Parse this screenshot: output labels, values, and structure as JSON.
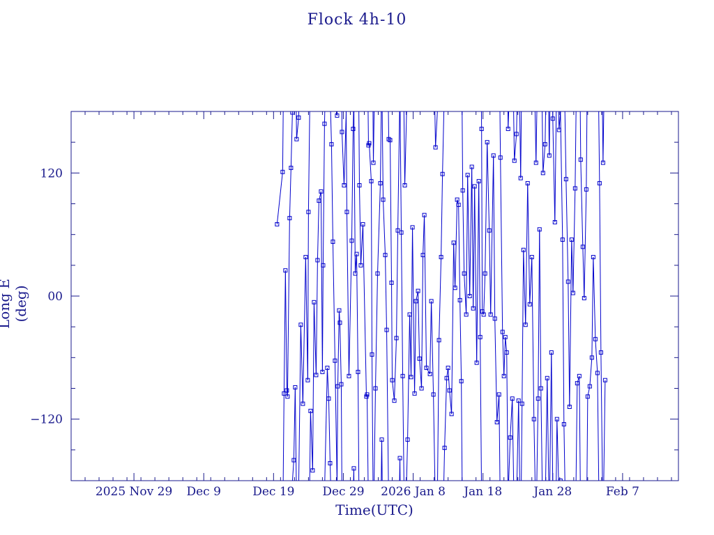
{
  "colors": {
    "axis": "#1a1a8c",
    "series": "#0000cc",
    "background": "#ffffff"
  },
  "chart_data": {
    "type": "line",
    "title": "Flock 4h-10",
    "xlabel": "Time(UTC)",
    "ylabel": "Long E (deg)",
    "x_unit": "days from 2025-11-20",
    "xlim": [
      0,
      87
    ],
    "ylim": [
      -180,
      180
    ],
    "x_ticks": [
      {
        "label": "2025 Nov 29",
        "day": 9
      },
      {
        "label": "Dec  9",
        "day": 19
      },
      {
        "label": "Dec 19",
        "day": 29
      },
      {
        "label": "Dec 29",
        "day": 39
      },
      {
        "label": "2026 Jan  8",
        "day": 49
      },
      {
        "label": "Jan 18",
        "day": 59
      },
      {
        "label": "Jan 28",
        "day": 69
      },
      {
        "label": "Feb  7",
        "day": 79
      }
    ],
    "y_ticks": [
      {
        "label": "−120",
        "value": -120
      },
      {
        "label": "00",
        "value": 0
      },
      {
        "label": "120",
        "value": 120
      }
    ],
    "series": [
      {
        "name": "",
        "wrap": true,
        "values": [
          [
            29.5,
            70
          ],
          [
            30.3,
            121
          ],
          [
            30.5,
            -95
          ],
          [
            30.7,
            25
          ],
          [
            30.9,
            -92
          ],
          [
            31.0,
            -98
          ],
          [
            31.3,
            76
          ],
          [
            31.5,
            125
          ],
          [
            31.7,
            179
          ],
          [
            31.9,
            -160
          ],
          [
            32.1,
            -89
          ],
          [
            32.3,
            153
          ],
          [
            32.6,
            174
          ],
          [
            32.9,
            -28
          ],
          [
            33.2,
            -105
          ],
          [
            33.6,
            38
          ],
          [
            33.9,
            -82
          ],
          [
            34.0,
            82
          ],
          [
            34.3,
            -112
          ],
          [
            34.6,
            -170
          ],
          [
            34.8,
            -6
          ],
          [
            35.1,
            -77
          ],
          [
            35.3,
            35
          ],
          [
            35.5,
            93
          ],
          [
            35.8,
            102
          ],
          [
            36.0,
            -74
          ],
          [
            36.1,
            30
          ],
          [
            36.3,
            168
          ],
          [
            36.7,
            -70
          ],
          [
            36.9,
            -100
          ],
          [
            37.1,
            -163
          ],
          [
            37.3,
            148
          ],
          [
            37.5,
            53
          ],
          [
            37.8,
            -63
          ],
          [
            38.1,
            176
          ],
          [
            38.2,
            -88
          ],
          [
            38.4,
            -14
          ],
          [
            38.5,
            -26
          ],
          [
            38.7,
            -86
          ],
          [
            38.8,
            160
          ],
          [
            39.1,
            108
          ],
          [
            39.4,
            -182
          ],
          [
            39.5,
            82
          ],
          [
            39.8,
            -78
          ],
          [
            40.2,
            54
          ],
          [
            40.4,
            163
          ],
          [
            40.5,
            -168
          ],
          [
            40.7,
            22
          ],
          [
            40.9,
            41
          ],
          [
            41.1,
            -74
          ],
          [
            41.3,
            108
          ],
          [
            41.5,
            30
          ],
          [
            41.8,
            70
          ],
          [
            42.3,
            -98
          ],
          [
            42.4,
            -96
          ],
          [
            42.6,
            147
          ],
          [
            42.7,
            149
          ],
          [
            43.0,
            112
          ],
          [
            43.1,
            -57
          ],
          [
            43.3,
            130
          ],
          [
            43.6,
            -90
          ],
          [
            43.9,
            22
          ],
          [
            44.3,
            110
          ],
          [
            44.5,
            -140
          ],
          [
            44.7,
            94
          ],
          [
            45.0,
            40
          ],
          [
            45.2,
            -33
          ],
          [
            45.5,
            153
          ],
          [
            45.7,
            152
          ],
          [
            45.9,
            13
          ],
          [
            46.0,
            -82
          ],
          [
            46.3,
            -102
          ],
          [
            46.6,
            -41
          ],
          [
            46.8,
            64
          ],
          [
            47.1,
            -158
          ],
          [
            47.3,
            62
          ],
          [
            47.5,
            -78
          ],
          [
            47.8,
            108
          ],
          [
            48.2,
            -140
          ],
          [
            48.5,
            -18
          ],
          [
            48.7,
            -79
          ],
          [
            48.9,
            67
          ],
          [
            49.2,
            -95
          ],
          [
            49.4,
            -5
          ],
          [
            49.7,
            5
          ],
          [
            49.9,
            -61
          ],
          [
            50.2,
            -90
          ],
          [
            50.4,
            40
          ],
          [
            50.6,
            79
          ],
          [
            50.9,
            -70
          ],
          [
            51.4,
            -76
          ],
          [
            51.6,
            -5
          ],
          [
            51.9,
            -96
          ],
          [
            52.2,
            145
          ],
          [
            52.5,
            184
          ],
          [
            52.7,
            -43
          ],
          [
            53.0,
            38
          ],
          [
            53.2,
            119
          ],
          [
            53.5,
            -148
          ],
          [
            53.8,
            -80
          ],
          [
            54.0,
            -70
          ],
          [
            54.2,
            -92
          ],
          [
            54.5,
            -115
          ],
          [
            54.8,
            52
          ],
          [
            55.0,
            8
          ],
          [
            55.3,
            94
          ],
          [
            55.5,
            89
          ],
          [
            55.7,
            -4
          ],
          [
            55.9,
            -83
          ],
          [
            56.1,
            103
          ],
          [
            56.3,
            22
          ],
          [
            56.6,
            -18
          ],
          [
            56.8,
            118
          ],
          [
            57.1,
            0
          ],
          [
            57.4,
            126
          ],
          [
            57.6,
            -12
          ],
          [
            57.8,
            107
          ],
          [
            58.1,
            -65
          ],
          [
            58.4,
            112
          ],
          [
            58.6,
            -40
          ],
          [
            58.8,
            163
          ],
          [
            58.9,
            -15
          ],
          [
            59.1,
            -18
          ],
          [
            59.3,
            22
          ],
          [
            59.6,
            150
          ],
          [
            59.9,
            64
          ],
          [
            60.1,
            -18
          ],
          [
            60.5,
            137
          ],
          [
            60.7,
            -22
          ],
          [
            61.0,
            -123
          ],
          [
            61.3,
            -96
          ],
          [
            61.5,
            135
          ],
          [
            61.8,
            -35
          ],
          [
            62.0,
            -78
          ],
          [
            62.2,
            -40
          ],
          [
            62.4,
            -55
          ],
          [
            62.6,
            163
          ],
          [
            62.9,
            -138
          ],
          [
            63.2,
            -100
          ],
          [
            63.5,
            132
          ],
          [
            63.8,
            158
          ],
          [
            64.1,
            -102
          ],
          [
            64.4,
            115
          ],
          [
            64.6,
            -105
          ],
          [
            64.8,
            45
          ],
          [
            65.1,
            -28
          ],
          [
            65.4,
            110
          ],
          [
            65.7,
            -8
          ],
          [
            66.0,
            38
          ],
          [
            66.3,
            -120
          ],
          [
            66.6,
            130
          ],
          [
            66.9,
            -100
          ],
          [
            67.1,
            65
          ],
          [
            67.3,
            -90
          ],
          [
            67.6,
            120
          ],
          [
            67.9,
            148
          ],
          [
            68.2,
            -80
          ],
          [
            68.5,
            137
          ],
          [
            68.8,
            -55
          ],
          [
            69.0,
            173
          ],
          [
            69.3,
            72
          ],
          [
            69.6,
            -120
          ],
          [
            69.9,
            162
          ],
          [
            70.1,
            -180
          ],
          [
            70.4,
            55
          ],
          [
            70.6,
            -125
          ],
          [
            70.9,
            114
          ],
          [
            71.2,
            14
          ],
          [
            71.4,
            -108
          ],
          [
            71.7,
            55
          ],
          [
            71.9,
            3
          ],
          [
            72.2,
            105
          ],
          [
            72.5,
            -85
          ],
          [
            72.8,
            -78
          ],
          [
            73.0,
            133
          ],
          [
            73.3,
            48
          ],
          [
            73.5,
            -2
          ],
          [
            73.8,
            104
          ],
          [
            74.0,
            -98
          ],
          [
            74.3,
            -88
          ],
          [
            74.6,
            -60
          ],
          [
            74.8,
            38
          ],
          [
            75.1,
            -42
          ],
          [
            75.4,
            -75
          ],
          [
            75.7,
            110
          ],
          [
            75.9,
            -55
          ],
          [
            76.2,
            130
          ],
          [
            76.5,
            -82
          ]
        ]
      }
    ]
  }
}
